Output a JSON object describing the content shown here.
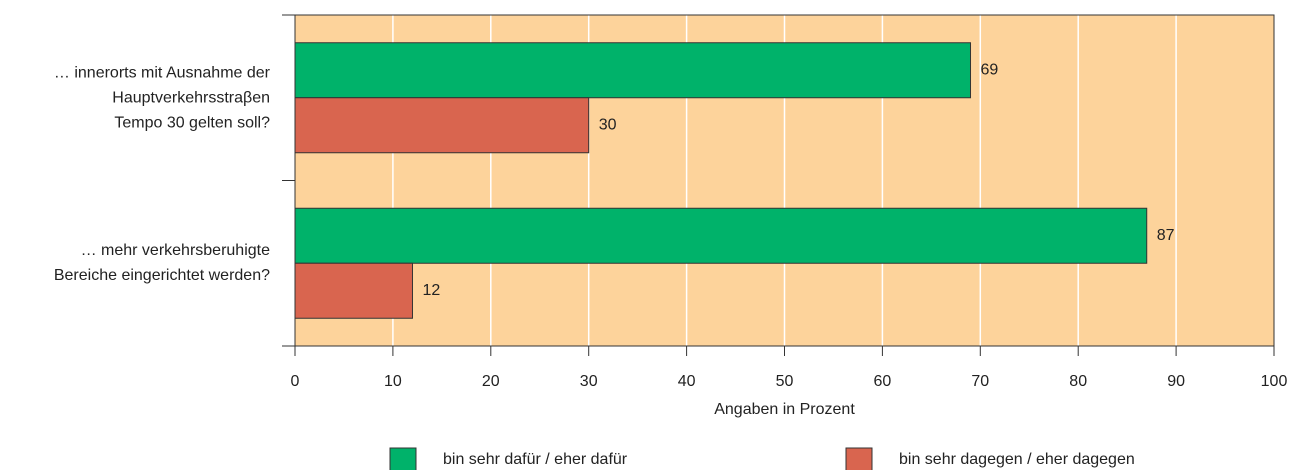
{
  "chart_data": {
    "type": "bar",
    "orientation": "horizontal",
    "categories": [
      "… innerorts mit Ausnahme der\nHauptverkehrsstraβen\nTempo 30 gelten soll?",
      "… mehr verkehrsberuhigte\nBereiche eingerichtet werden?"
    ],
    "series": [
      {
        "name": "bin sehr dafür / eher dafür",
        "color": "#00b26a",
        "values": [
          69,
          87
        ]
      },
      {
        "name": "bin sehr dagegen / eher dagegen",
        "color": "#d9654f",
        "values": [
          30,
          12
        ]
      }
    ],
    "xlabel": "Angaben in Prozent",
    "xlim": [
      0,
      100
    ],
    "xticks": [
      0,
      10,
      20,
      30,
      40,
      50,
      60,
      70,
      80,
      90,
      100
    ],
    "grid": true,
    "background": "#fdd39b",
    "legend": "bottom"
  }
}
